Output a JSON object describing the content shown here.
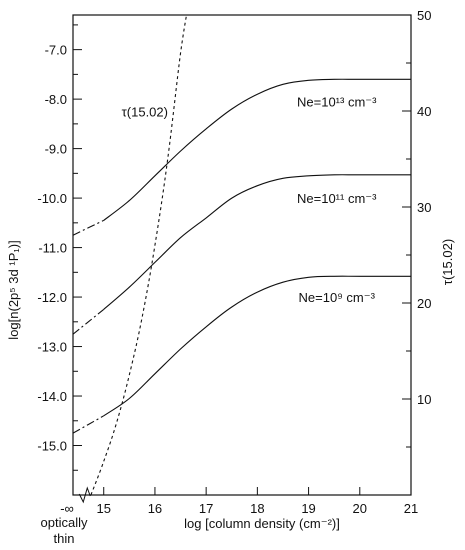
{
  "chart_data": {
    "type": "line",
    "xlabel": "log [column density (cm⁻²)]",
    "ylabel_left": "log[n(2p⁵ 3d ¹P₁)]",
    "ylabel_right": "τ(15.02)",
    "xlim": [
      14.4,
      21
    ],
    "ylim_left": [
      -16.0,
      -6.3
    ],
    "ylim_right": [
      0,
      50
    ],
    "x_ticks": [
      {
        "value": 14.4,
        "label": "-∞"
      },
      {
        "value": 15,
        "label": "15"
      },
      {
        "value": 16,
        "label": "16"
      },
      {
        "value": 17,
        "label": "17"
      },
      {
        "value": 18,
        "label": "18"
      },
      {
        "value": 19,
        "label": "19"
      },
      {
        "value": 20,
        "label": "20"
      },
      {
        "value": 21,
        "label": "21"
      }
    ],
    "x_sublabel": [
      "optically",
      "thin"
    ],
    "y_left_ticks": [
      {
        "value": -7,
        "label": "-7.0"
      },
      {
        "value": -8,
        "label": "-8.0"
      },
      {
        "value": -9,
        "label": "-9.0"
      },
      {
        "value": -10,
        "label": "-10.0"
      },
      {
        "value": -11,
        "label": "-11.0"
      },
      {
        "value": -12,
        "label": "-12.0"
      },
      {
        "value": -13,
        "label": "-13.0"
      },
      {
        "value": -14,
        "label": "-14.0"
      },
      {
        "value": -15,
        "label": "-15.0"
      }
    ],
    "y_right_ticks": [
      {
        "value": 10,
        "label": "10"
      },
      {
        "value": 20,
        "label": "20"
      },
      {
        "value": 30,
        "label": "30"
      },
      {
        "value": 40,
        "label": "40"
      },
      {
        "value": 50,
        "label": "50"
      }
    ],
    "series": [
      {
        "name": "Ne=10¹³ cm⁻³",
        "axis": "left",
        "style": "solid",
        "dashed_below_x": 15.0,
        "x": [
          14.4,
          15.0,
          15.5,
          16.0,
          16.5,
          17.0,
          17.5,
          18.0,
          18.5,
          19.0,
          19.5,
          20.0,
          21.0
        ],
        "y": [
          -10.75,
          -10.45,
          -10.05,
          -9.55,
          -9.05,
          -8.6,
          -8.2,
          -7.9,
          -7.7,
          -7.62,
          -7.6,
          -7.6,
          -7.6
        ]
      },
      {
        "name": "Ne=10¹¹ cm⁻³",
        "axis": "left",
        "style": "solid",
        "dashed_below_x": 15.0,
        "x": [
          14.4,
          15.0,
          15.5,
          16.0,
          16.5,
          17.0,
          17.5,
          18.0,
          18.5,
          19.0,
          19.5,
          20.0,
          21.0
        ],
        "y": [
          -12.75,
          -12.25,
          -11.8,
          -11.3,
          -10.8,
          -10.4,
          -10.0,
          -9.75,
          -9.6,
          -9.55,
          -9.53,
          -9.53,
          -9.53
        ]
      },
      {
        "name": "Ne=10⁹ cm⁻³",
        "axis": "left",
        "style": "solid",
        "dashed_below_x": 15.0,
        "x": [
          14.4,
          15.0,
          15.5,
          16.0,
          16.5,
          17.0,
          17.5,
          18.0,
          18.5,
          19.0,
          19.5,
          20.0,
          21.0
        ],
        "y": [
          -14.75,
          -14.4,
          -14.05,
          -13.55,
          -13.05,
          -12.6,
          -12.2,
          -11.9,
          -11.7,
          -11.6,
          -11.58,
          -11.58,
          -11.58
        ]
      },
      {
        "name": "τ(15.02)",
        "axis": "right",
        "style": "dashed",
        "x": [
          14.75,
          15.0,
          15.25,
          15.5,
          15.75,
          16.0,
          16.25,
          16.5,
          16.65
        ],
        "y": [
          0,
          3.5,
          7.5,
          12.5,
          18.5,
          26,
          35,
          46,
          51
        ]
      }
    ],
    "annotations": [
      {
        "text": "τ(15.02)",
        "x": 15.35,
        "y": -8.35
      },
      {
        "text": "Ne=10¹³ cm⁻³",
        "x": 19.55,
        "y": -8.15
      },
      {
        "text": "Ne=10¹¹ cm⁻³",
        "x": 19.55,
        "y": -10.1
      },
      {
        "text": "Ne=10⁹ cm⁻³",
        "x": 19.55,
        "y": -12.1
      }
    ],
    "grid": false,
    "axis_break": "x"
  }
}
